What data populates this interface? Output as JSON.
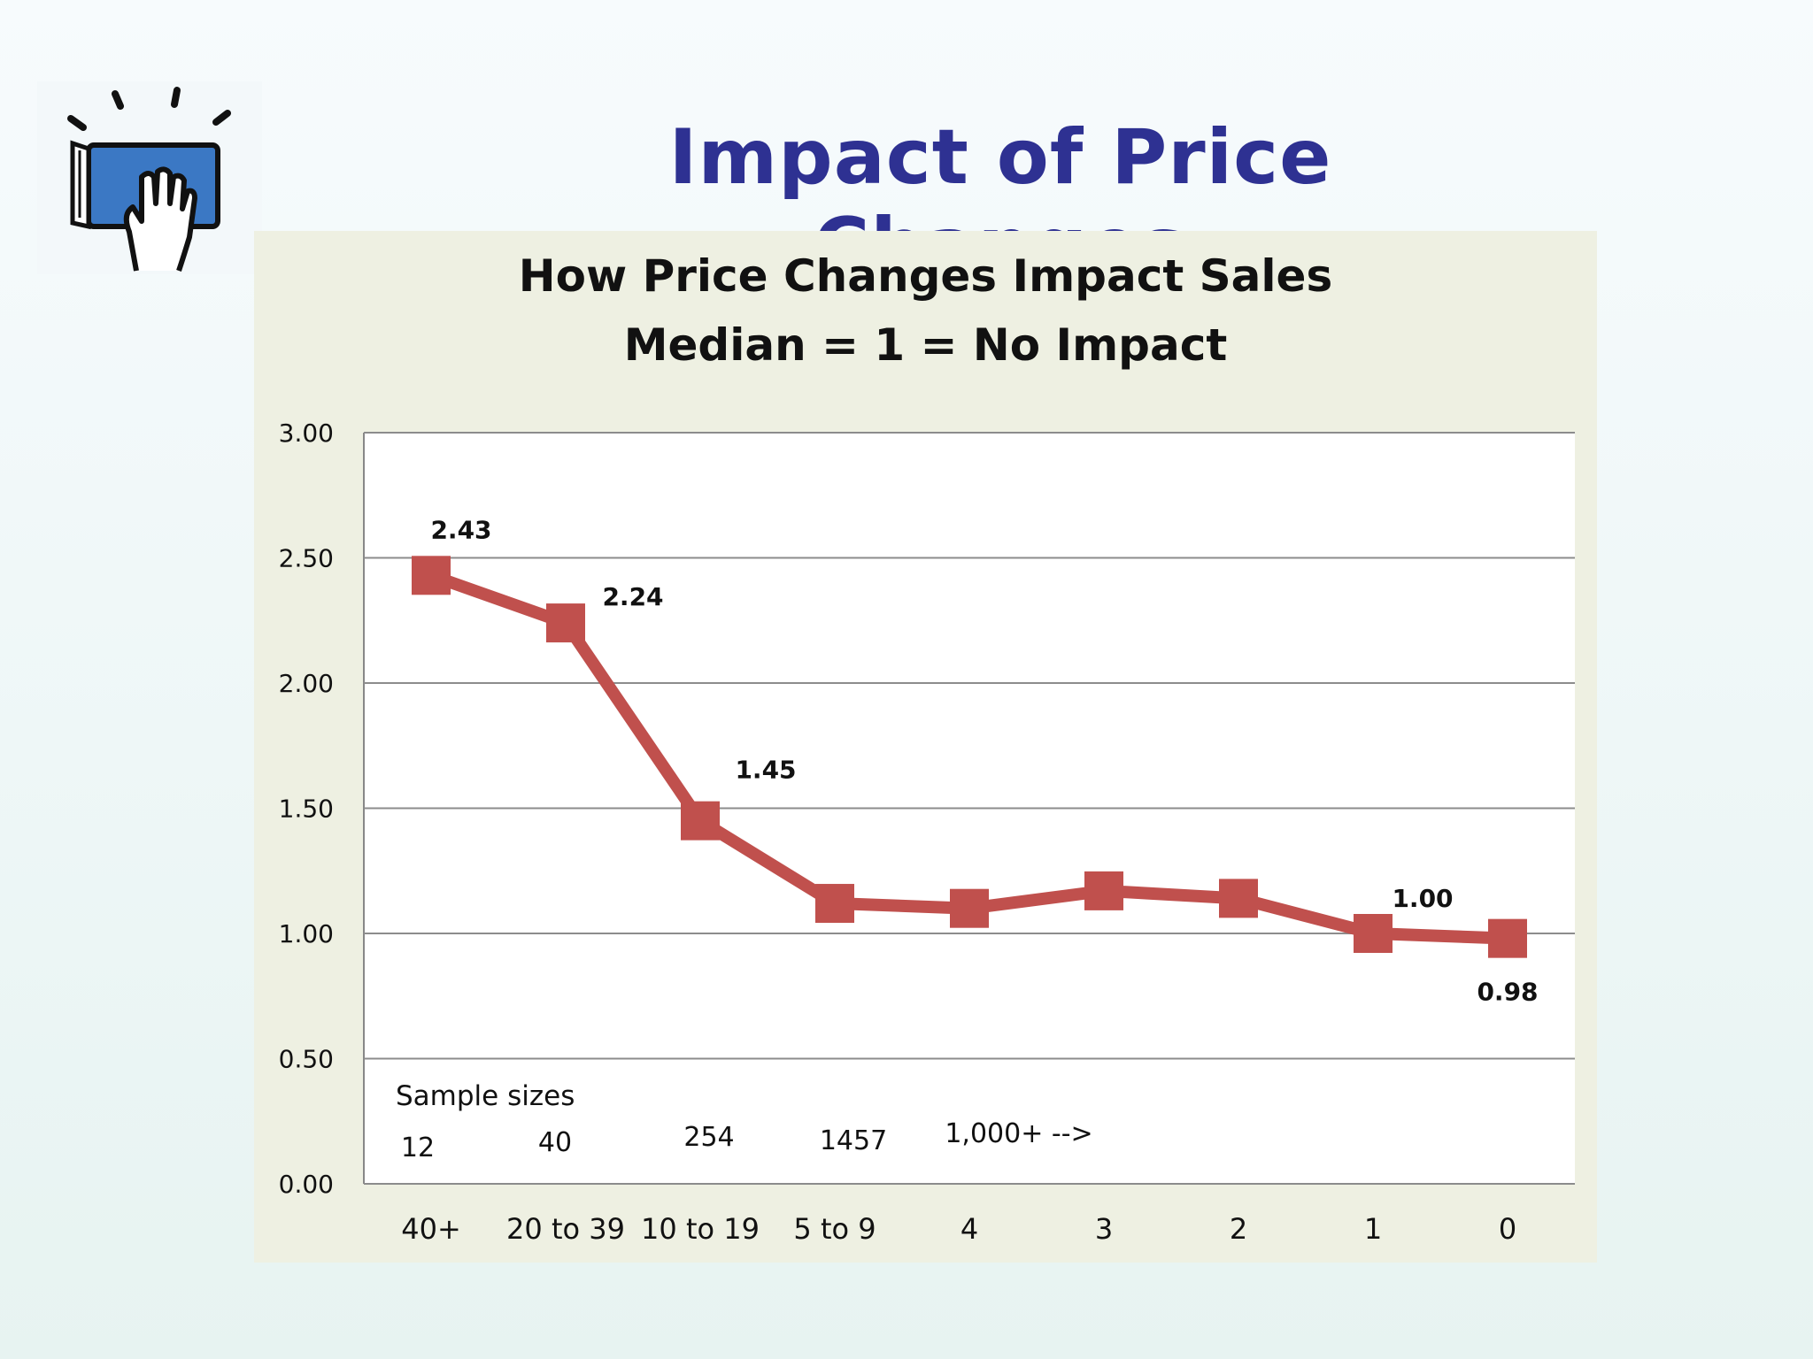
{
  "slide": {
    "title": "Impact of Price Changes",
    "logo_icon": "book-hand-icon"
  },
  "chart_data": {
    "type": "line",
    "title": "How Price Changes Impact Sales",
    "subtitle": "Median = 1 = No Impact",
    "categories": [
      "40+",
      "20 to 39",
      "10 to 19",
      "5 to 9",
      "4",
      "3",
      "2",
      "1",
      "0"
    ],
    "series": [
      {
        "values": [
          2.43,
          2.24,
          1.45,
          1.12,
          1.1,
          1.17,
          1.14,
          1.0,
          0.98
        ],
        "color": "#c0504d"
      }
    ],
    "data_labels": [
      {
        "index": 0,
        "text": "2.43"
      },
      {
        "index": 1,
        "text": "2.24"
      },
      {
        "index": 2,
        "text": "1.45"
      },
      {
        "index": 7,
        "text": "1.00"
      },
      {
        "index": 8,
        "text": "0.98"
      }
    ],
    "yticks": [
      "0.00",
      "0.50",
      "1.00",
      "1.50",
      "2.00",
      "2.50",
      "3.00"
    ],
    "ylim": [
      0,
      3
    ],
    "grid": true,
    "annotations": {
      "sample_sizes_label": "Sample sizes",
      "sample_sizes": [
        "12",
        "40",
        "254",
        "1457",
        "1,000+ -->"
      ]
    }
  }
}
